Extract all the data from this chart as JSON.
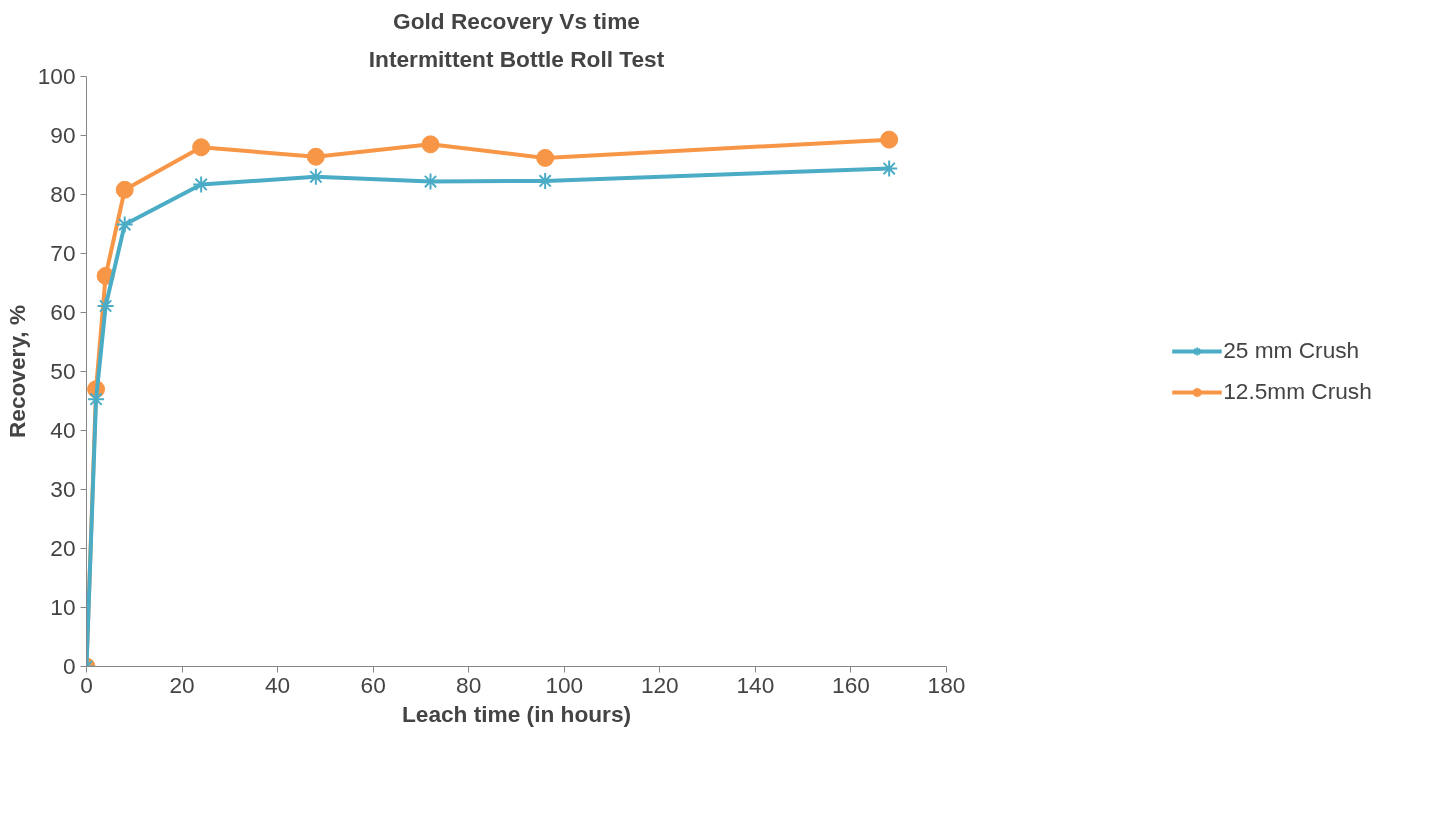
{
  "chart_data": {
    "type": "line",
    "title": "Gold Recovery Vs time",
    "subtitle": "Intermittent Bottle Roll Test",
    "xlabel": "Leach time (in hours)",
    "ylabel": "Recovery, %",
    "x": [
      0,
      2,
      4,
      8,
      24,
      48,
      72,
      96,
      168
    ],
    "series": [
      {
        "name": "25 mm Crush",
        "color": "#4bacc6",
        "marker": "cross",
        "values": [
          0,
          45.3,
          61.1,
          74.9,
          81.7,
          83.0,
          82.2,
          82.3,
          84.4
        ]
      },
      {
        "name": "12.5mm Crush",
        "color": "#f79646",
        "marker": "circle",
        "values": [
          0,
          47.0,
          66.2,
          80.8,
          88.0,
          86.4,
          88.5,
          86.2,
          89.3
        ]
      }
    ],
    "xlim": [
      0,
      180
    ],
    "xticks": [
      0,
      20,
      40,
      60,
      80,
      100,
      120,
      140,
      160,
      180
    ],
    "ylim": [
      0,
      100
    ],
    "yticks": [
      0,
      10,
      20,
      30,
      40,
      50,
      60,
      70,
      80,
      90,
      100
    ],
    "grid": false,
    "legend": "right",
    "line_style": "solid"
  }
}
